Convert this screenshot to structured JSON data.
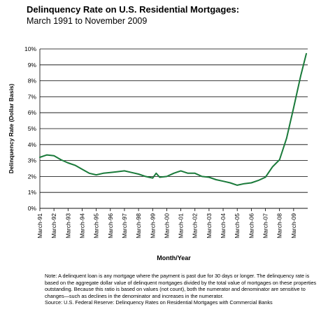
{
  "title": "Delinquency Rate on U.S. Residential Mortgages:",
  "subtitle": "March 1991 to November 2009",
  "note": "Note: A delinquent loan is any mortgage where the payment is past due for 30 days or longer. The delinquency rate is based on the aggregate dollar value of delinquent mortgages divided by the total value of mortgages on these properties outstanding. Because this ratio is based on values (not count), both the numerator and denominator are sensitive to changes—such as declines in the denominator and increases in the numerator.",
  "source": "Source: U.S. Federal Reserve: Delinquency Rates on Residential Mortgages with Commercial Banks",
  "colors": {
    "line": "#1a7a3a",
    "grid": "#000000"
  },
  "chart_data": {
    "type": "line",
    "title": "Delinquency Rate on U.S. Residential Mortgages:",
    "subtitle": "March 1991 to November 2009",
    "xlabel": "Month/Year",
    "ylabel": "Delinquency Rate (Dollar Basis)",
    "ylim": [
      0,
      10
    ],
    "yticks": [
      "0%",
      "1%",
      "2%",
      "3%",
      "4%",
      "5%",
      "6%",
      "7%",
      "8%",
      "9%",
      "10%"
    ],
    "xticks": [
      "March-91",
      "March-92",
      "March-93",
      "March-94",
      "March-95",
      "March-96",
      "March-97",
      "March-98",
      "March-99",
      "March-00",
      "March-01",
      "March-02",
      "March-03",
      "March-04",
      "March-05",
      "March-06",
      "March-07",
      "March-08",
      "March-09"
    ],
    "grid": "horizontal",
    "legend": "none",
    "x": [
      1991.0,
      1991.5,
      1992.0,
      1992.5,
      1993.0,
      1993.5,
      1994.0,
      1994.5,
      1995.0,
      1995.5,
      1996.0,
      1996.5,
      1997.0,
      1997.5,
      1998.0,
      1998.5,
      1999.0,
      1999.25,
      1999.5,
      2000.0,
      2000.5,
      2001.0,
      2001.5,
      2002.0,
      2002.5,
      2003.0,
      2003.5,
      2004.0,
      2004.5,
      2005.0,
      2005.5,
      2006.0,
      2006.5,
      2007.0,
      2007.5,
      2008.0,
      2008.5,
      2009.0,
      2009.5,
      2009.9
    ],
    "values": [
      3.2,
      3.35,
      3.3,
      3.05,
      2.85,
      2.7,
      2.45,
      2.2,
      2.1,
      2.2,
      2.25,
      2.3,
      2.35,
      2.25,
      2.15,
      2.0,
      1.9,
      2.2,
      1.95,
      2.0,
      2.2,
      2.35,
      2.2,
      2.2,
      2.0,
      1.95,
      1.8,
      1.7,
      1.6,
      1.45,
      1.55,
      1.6,
      1.75,
      1.95,
      2.6,
      3.05,
      4.4,
      6.3,
      8.3,
      9.7
    ]
  }
}
